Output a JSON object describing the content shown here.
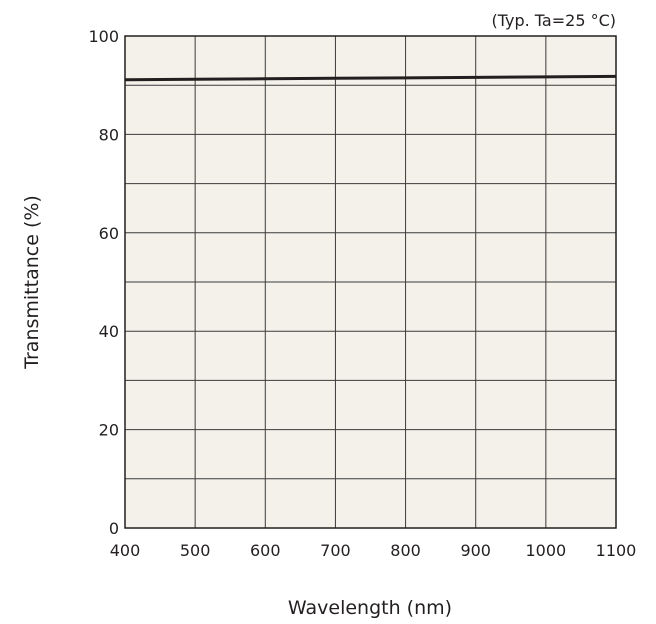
{
  "chart_data": {
    "type": "line",
    "title": "",
    "annotation": "(Typ. Ta=25 °C)",
    "xlabel": "Wavelength (nm)",
    "ylabel": "Transmittance (%)",
    "xlim": [
      400,
      1100
    ],
    "ylim": [
      0,
      100
    ],
    "x_ticks": [
      400,
      500,
      600,
      700,
      800,
      900,
      1000,
      1100
    ],
    "y_ticks": [
      0,
      20,
      40,
      60,
      80,
      100
    ],
    "grid": true,
    "legend": "none",
    "plot_background": "#f3f1e9",
    "line_color": "#231f20",
    "series": [
      {
        "x": [
          400,
          500,
          600,
          700,
          800,
          900,
          1000,
          1100
        ],
        "y": [
          91.1,
          91.2,
          91.3,
          91.4,
          91.5,
          91.6,
          91.7,
          91.8
        ]
      }
    ]
  }
}
